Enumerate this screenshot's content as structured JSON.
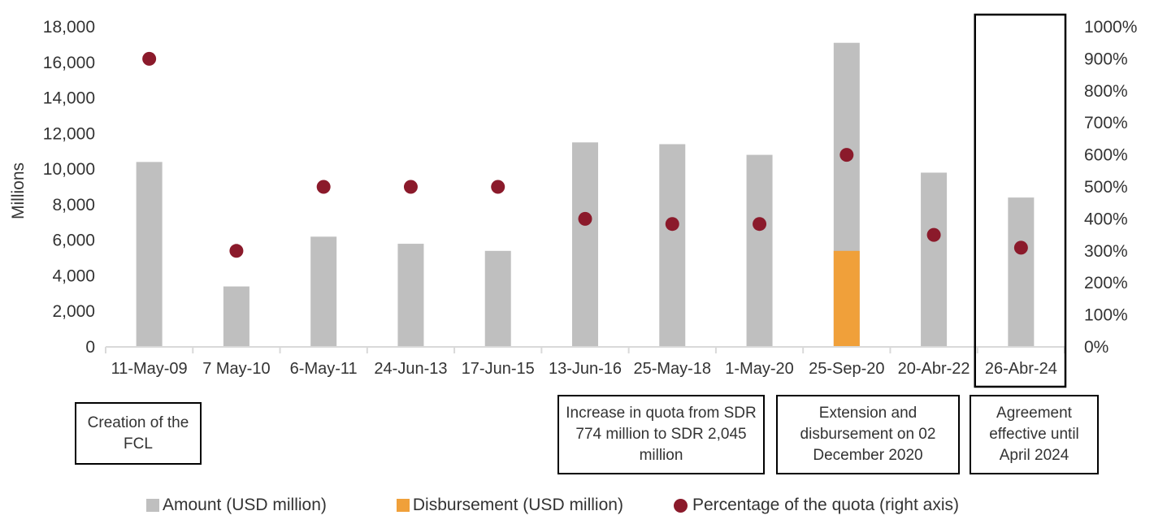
{
  "chart_data": {
    "type": "bar",
    "categories": [
      "11-May-09",
      "7 May-10",
      "6-May-11",
      "24-Jun-13",
      "17-Jun-15",
      "13-Jun-16",
      "25-May-18",
      "1-May-20",
      "25-Sep-20",
      "20-Abr-22",
      "26-Abr-24"
    ],
    "series": [
      {
        "name": "Amount (USD million)",
        "type": "bar",
        "axis": "left",
        "color": "#bfbfbf",
        "values": [
          10400,
          3400,
          6200,
          5800,
          5400,
          11500,
          11400,
          10800,
          17100,
          9800,
          8400
        ]
      },
      {
        "name": "Disbursement (USD million)",
        "type": "bar",
        "axis": "left",
        "color": "#f0a03a",
        "values": [
          null,
          null,
          null,
          null,
          null,
          null,
          null,
          null,
          5400,
          null,
          null
        ]
      },
      {
        "name": "Percentage of the quota (right axis)",
        "type": "scatter",
        "axis": "right",
        "color": "#8b1a2b",
        "values": [
          900,
          300,
          500,
          500,
          500,
          400,
          384,
          384,
          600,
          350,
          310
        ]
      }
    ],
    "ylabel": "Millions",
    "ylim": [
      0,
      18000
    ],
    "yticks": [
      "0",
      "2,000",
      "4,000",
      "6,000",
      "8,000",
      "10,000",
      "12,000",
      "14,000",
      "16,000",
      "18,000"
    ],
    "y2lim": [
      0,
      1000
    ],
    "y2ticks": [
      "0%",
      "100%",
      "200%",
      "300%",
      "400%",
      "500%",
      "600%",
      "700%",
      "800%",
      "900%",
      "1000%"
    ],
    "grid": false,
    "legend_position": "bottom",
    "highlighted_category": "26-Abr-24",
    "annotations": [
      {
        "category": "11-May-09",
        "text": "Creation of the FCL"
      },
      {
        "category": "13-Jun-16",
        "text": "Increase in quota from SDR 774 million to SDR 2,045 million"
      },
      {
        "category": "25-Sep-20",
        "text": "Extension and disbursement on 02 December 2020"
      },
      {
        "category": "26-Abr-24",
        "text": "Agreement effective until April 2024"
      }
    ]
  }
}
